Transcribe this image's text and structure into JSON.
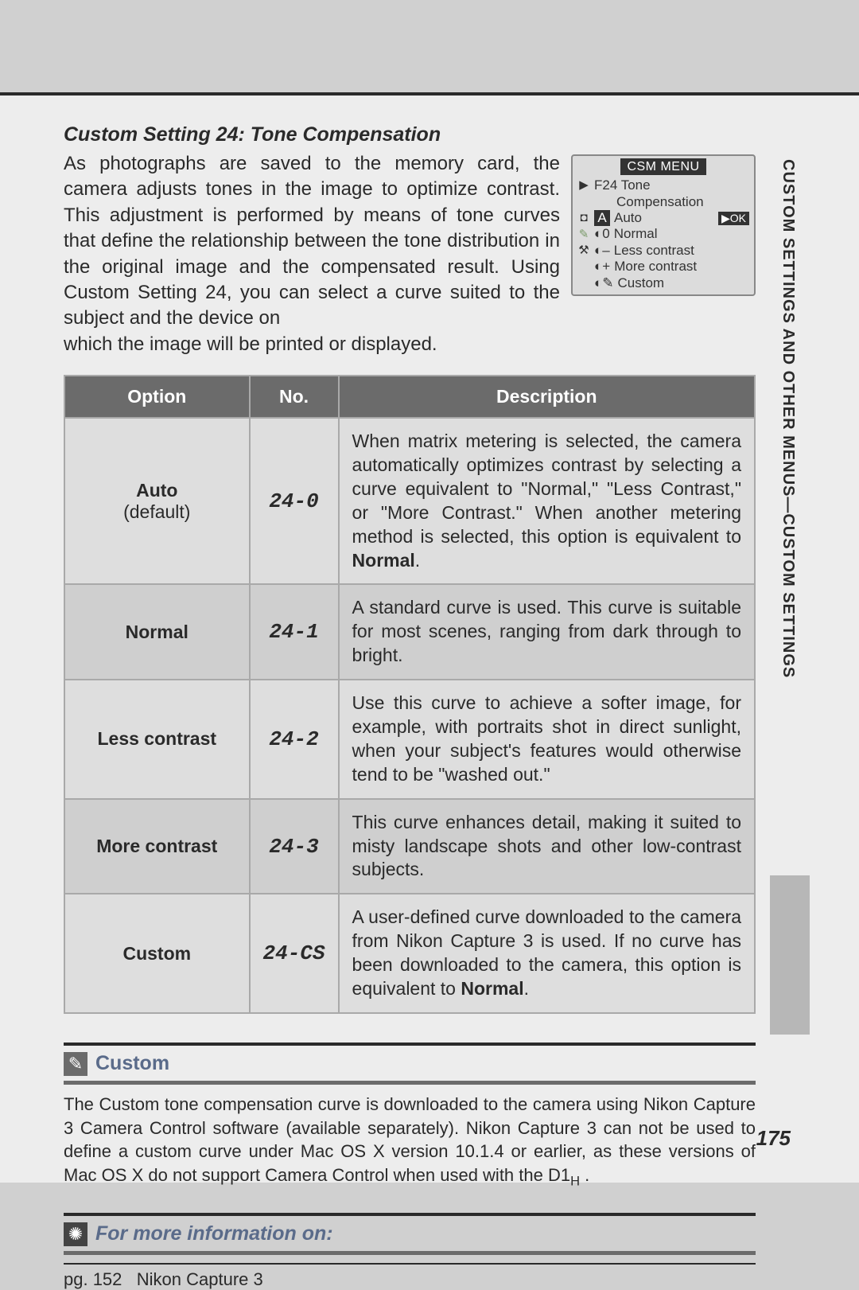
{
  "page": {
    "heading": "Custom Setting 24: Tone Compensation",
    "intro_wrapped": "As photographs are saved to the memory card, the camera adjusts tones in the image to optimize contrast. This adjustment is performed by means of tone curves that define the relationship between the tone distribution in the original image and the compensated result.  Using Custom Setting 24, you can select a curve suited to the subject and the device on",
    "intro_after": "which the image will be printed or displayed.",
    "side_tab": "CUSTOM SETTINGS AND OTHER MENUS—CUSTOM SETTINGS",
    "page_number": "175"
  },
  "lcd": {
    "title": "CSM MENU",
    "line1_left_icon": "▶",
    "line1": "F24 Tone",
    "line2": "Compensation",
    "icon_cam": "◘",
    "sel_letter": "A",
    "sel_label": "Auto",
    "ok": "▶OK",
    "icon_pencil": "✎",
    "row_normal_mark": "◐0",
    "row_normal": "Normal",
    "icon_tuning": "⚒",
    "row_less_mark": "◐–",
    "row_less": "Less contrast",
    "row_more_mark": "◐+",
    "row_more": "More contrast",
    "row_custom_mark": "◐✎",
    "row_custom": "Custom"
  },
  "table": {
    "headers": {
      "option": "Option",
      "no": "No.",
      "desc": "Description"
    },
    "col_widths": {
      "option": "27%",
      "no": "12%",
      "desc": "61%"
    },
    "rows": [
      {
        "option": "Auto",
        "option_sub": "(default)",
        "no": "24-0",
        "desc_pre": "When matrix metering is selected, the camera automatically optimizes contrast by selecting a curve equivalent to \"Normal,\" \"Less Contrast,\" or \"More Contrast.\"  When another metering method is selected, this option is equivalent to ",
        "desc_bold": "Normal",
        "desc_post": "."
      },
      {
        "option": "Normal",
        "option_sub": "",
        "no": "24-1",
        "desc_pre": "A standard curve is used.  This curve is suitable for most scenes, ranging from dark through to bright.",
        "desc_bold": "",
        "desc_post": ""
      },
      {
        "option": "Less contrast",
        "option_sub": "",
        "no": "24-2",
        "desc_pre": "Use this curve to achieve a softer image, for example, with portraits shot in direct sunlight, when your subject's features would otherwise tend to be \"washed out.\"",
        "desc_bold": "",
        "desc_post": ""
      },
      {
        "option": "More contrast",
        "option_sub": "",
        "no": "24-3",
        "desc_pre": "This curve enhances detail, making it suited to misty landscape shots and other low-contrast subjects.",
        "desc_bold": "",
        "desc_post": ""
      },
      {
        "option": "Custom",
        "option_sub": "",
        "no": "24-CS",
        "desc_pre": "A user-defined curve downloaded to the camera from Nikon Capture 3 is used.  If no curve has been downloaded to the camera, this option is equivalent to ",
        "desc_bold": "Normal",
        "desc_post": "."
      }
    ]
  },
  "note": {
    "icon": "✎",
    "title": "Custom",
    "body_pre": "The Custom tone compensation curve is downloaded to the camera using Nikon Capture 3 Camera Control software (available separately).  Nikon Capture 3 can not be used to define a custom curve under Mac OS X version 10.1.4 or earlier, as these versions of Mac OS X do not support Camera Control when used with the D1",
    "body_sub": "H",
    "body_post": " ."
  },
  "ref": {
    "icon": "✺",
    "title": "For more information on:",
    "items": [
      {
        "pg": "pg. 152",
        "label": "Nikon Capture 3"
      }
    ]
  },
  "colors": {
    "page_bg": "#ededed",
    "outer_bg": "#d0d0d0",
    "rule_dark": "#2a2a2a",
    "table_header_bg": "#6b6b6b",
    "table_border": "#a9a9a9",
    "row_odd": "#dedede",
    "row_even": "#cfcfcf",
    "accent_blue": "#5a6b8a",
    "thumb_tab": "#b7b7b7"
  }
}
